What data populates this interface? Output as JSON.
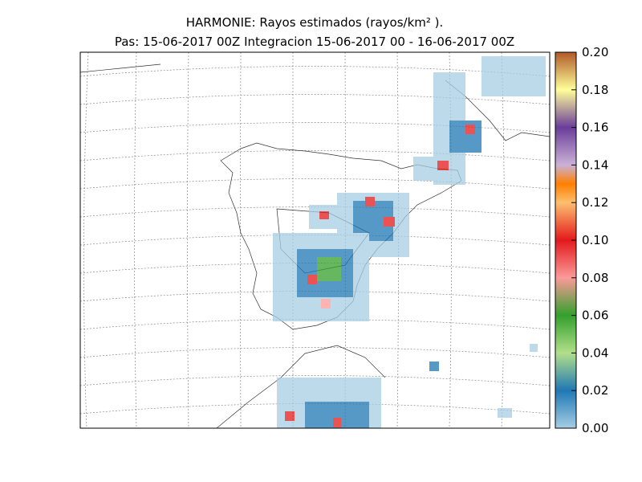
{
  "chart_data": {
    "type": "map",
    "title": "HARMONIE: Rayos estimados  (rayos/km² ).",
    "subtitle": "Pas: 15-06-2017 00Z Integracion 15-06-2017 00 - 16-06-2017 00Z",
    "colorbar": {
      "lim": [
        0,
        0.2
      ],
      "ticks": [
        {
          "value": 0,
          "label": "0.00"
        },
        {
          "value": 0.02,
          "label": "0.02"
        },
        {
          "value": 0.04,
          "label": "0.04"
        },
        {
          "value": 0.06,
          "label": "0.06"
        },
        {
          "value": 0.08,
          "label": "0.08"
        },
        {
          "value": 0.1,
          "label": "0.10"
        },
        {
          "value": 0.12,
          "label": "0.12"
        },
        {
          "value": 0.14,
          "label": "0.14"
        },
        {
          "value": 0.16,
          "label": "0.16"
        },
        {
          "value": 0.18,
          "label": "0.18"
        },
        {
          "value": 0.2,
          "label": "0.20"
        }
      ]
    }
  }
}
